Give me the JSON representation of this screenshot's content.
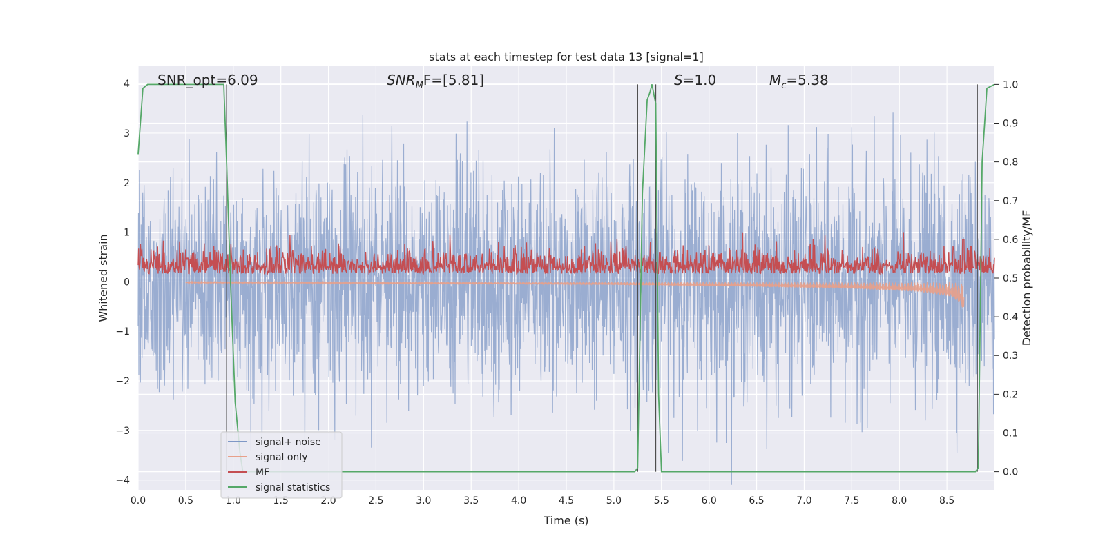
{
  "chart_data": {
    "type": "line",
    "title": "stats at each timestep for test data 13 [signal=1]",
    "xlabel": "Time (s)",
    "ylabel": "Whitened strain",
    "y2label": "Detection probability/MF",
    "xlim": [
      0,
      9.0
    ],
    "ylim": [
      -4.2,
      4.35
    ],
    "y2lim": [
      -0.047,
      1.047
    ],
    "xticks": [
      "0.0",
      "0.5",
      "1.0",
      "1.5",
      "2.0",
      "2.5",
      "3.0",
      "3.5",
      "4.0",
      "4.5",
      "5.0",
      "5.5",
      "6.0",
      "6.5",
      "7.0",
      "7.5",
      "8.0",
      "8.5"
    ],
    "yticks": [
      "4",
      "3",
      "2",
      "1",
      "0",
      "−1",
      "−2",
      "−3",
      "−4"
    ],
    "y2ticks": [
      "1.0",
      "0.9",
      "0.8",
      "0.7",
      "0.6",
      "0.5",
      "0.4",
      "0.3",
      "0.2",
      "0.1",
      "0.0"
    ],
    "grid": true,
    "legend_position": "lower-left",
    "annotations": {
      "snr_opt": "SNR_opt=6.09",
      "snr_mf_sym": "SNR",
      "snr_mf_sub": "M",
      "snr_mf_rest": "F=[5.81]",
      "s_sym": "S",
      "s_rest": "=1.0",
      "mc_sym": "M",
      "mc_sub": "c",
      "mc_rest": "=5.38"
    },
    "series": [
      {
        "name": "signal+ noise",
        "color": "#7f98c6",
        "axis": "left",
        "noise_std": 1.0,
        "time_range": [
          0,
          9.0
        ]
      },
      {
        "name": "signal only",
        "color": "#e8a08a",
        "axis": "left",
        "envelope": {
          "t": [
            0.5,
            3.0,
            5.0,
            6.5,
            7.5,
            8.2,
            8.55,
            8.65,
            8.68
          ],
          "amp": [
            0.02,
            0.04,
            0.06,
            0.1,
            0.14,
            0.2,
            0.3,
            0.45,
            0.65
          ]
        }
      },
      {
        "name": "MF",
        "color": "#c44e52",
        "axis": "right",
        "mean": 0.52,
        "spread": 0.03,
        "peak": {
          "t": 8.67,
          "value": 0.6
        }
      },
      {
        "name": "signal statistics",
        "color": "#55a868",
        "axis": "right",
        "t": [
          0.0,
          0.05,
          0.1,
          0.2,
          0.5,
          0.9,
          0.93,
          0.97,
          1.02,
          1.07,
          1.1,
          2.5,
          2.65,
          5.22,
          5.25,
          5.3,
          5.35,
          5.38,
          5.4,
          5.44,
          5.47,
          5.5,
          8.8,
          8.83,
          8.87,
          8.92,
          9.0
        ],
        "values": [
          0.82,
          0.99,
          1.0,
          1.0,
          1.0,
          1.0,
          0.8,
          0.5,
          0.18,
          0.05,
          0.0,
          0.0,
          0.0,
          0.0,
          0.01,
          0.72,
          0.96,
          0.98,
          1.0,
          0.95,
          0.2,
          0.0,
          0.0,
          0.01,
          0.8,
          0.99,
          1.0
        ]
      }
    ],
    "vlines": [
      0.93,
      5.25,
      5.44,
      8.82
    ]
  }
}
